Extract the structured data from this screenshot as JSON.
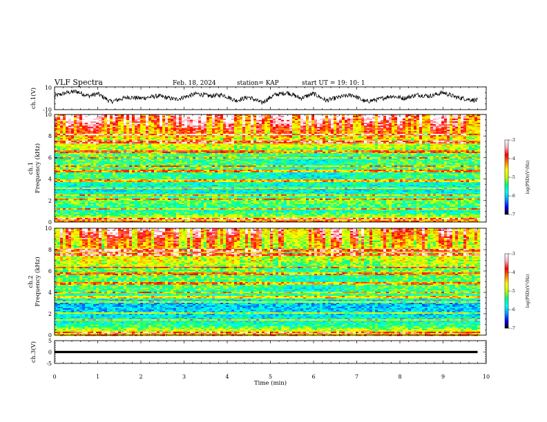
{
  "header": {
    "title": "VLF Spectra",
    "date": "Feb. 18, 2024",
    "station": "station= KAP",
    "start": "start  UT =   19: 10: 1"
  },
  "colorbar": {
    "label": "log(PSD)(V²/Hz)",
    "ticks": [
      "-3",
      "-4",
      "-5",
      "-6",
      "-7"
    ],
    "stops": [
      "#000000",
      "#0000ff",
      "#00a0ff",
      "#00ffff",
      "#00ff80",
      "#c8ff00",
      "#ffff00",
      "#ff8000",
      "#ff0000",
      "#ffb0c0",
      "#ffffff"
    ]
  },
  "chart_data": [
    {
      "type": "line",
      "name": "ch1-waveform",
      "ylabel": "ch.1(V)",
      "ylim": [
        -10,
        10
      ],
      "yticks": [
        "10",
        "-10"
      ],
      "xlim": [
        0,
        10
      ],
      "x_end": 9.8,
      "envelope": {
        "x": [
          0,
          0.3,
          0.5,
          0.8,
          1.0,
          1.3,
          1.7,
          2.0,
          2.4,
          2.8,
          3.0,
          3.3,
          3.6,
          3.9,
          4.2,
          4.5,
          4.8,
          5.1,
          5.4,
          5.7,
          6.0,
          6.3,
          6.6,
          6.9,
          7.2,
          7.5,
          7.8,
          8.1,
          8.4,
          8.7,
          9.0,
          9.3,
          9.6,
          9.8
        ],
        "y": [
          2,
          5,
          6,
          2,
          4,
          -3,
          1,
          0,
          2,
          -1,
          1,
          4,
          2,
          3,
          -2,
          1,
          -4,
          3,
          5,
          0,
          4,
          -2,
          1,
          3,
          -3,
          -1,
          2,
          0,
          3,
          2,
          5,
          1,
          -1,
          -2
        ]
      }
    },
    {
      "type": "heatmap",
      "name": "ch1-spectrogram",
      "ylabel_channel": "ch.1",
      "ylabel": "Frequency (kHz)",
      "ylim": [
        0,
        10
      ],
      "yticks": [
        "0",
        "2",
        "4",
        "6",
        "8",
        "10"
      ],
      "xlim": [
        0,
        10
      ],
      "x_end": 9.8,
      "zlim": [
        -7,
        -3
      ],
      "profile_freq_khz": [
        0,
        0.3,
        1.0,
        2.0,
        3.0,
        4.0,
        5.0,
        6.0,
        7.0,
        8.0,
        9.0,
        10.0
      ],
      "profile_log_psd": [
        -4.0,
        -4.5,
        -5.6,
        -5.2,
        -5.8,
        -5.5,
        -5.3,
        -5.4,
        -5.1,
        -4.9,
        -4.5,
        -4.1
      ],
      "lines_khz": [
        0.4,
        1.3,
        2.2,
        2.6,
        3.2,
        3.9,
        4.8,
        5.3,
        6.0,
        6.6,
        7.5,
        8.2
      ]
    },
    {
      "type": "heatmap",
      "name": "ch2-spectrogram",
      "ylabel_channel": "ch.2",
      "ylabel": "Frequency (kHz)",
      "ylim": [
        0,
        10
      ],
      "yticks": [
        "0",
        "2",
        "4",
        "6",
        "8",
        "10"
      ],
      "xlim": [
        0,
        10
      ],
      "x_end": 9.8,
      "zlim": [
        -7,
        -3
      ],
      "profile_freq_khz": [
        0,
        0.3,
        1.0,
        2.0,
        3.0,
        4.0,
        5.0,
        6.0,
        7.0,
        8.0,
        9.0,
        10.0
      ],
      "profile_log_psd": [
        -4.2,
        -4.6,
        -5.5,
        -5.9,
        -6.0,
        -5.4,
        -5.3,
        -5.2,
        -5.0,
        -5.1,
        -4.9,
        -4.6
      ],
      "lines_khz": [
        0.3,
        1.5,
        2.1,
        3.2,
        3.6,
        4.1,
        4.9,
        5.8,
        6.4,
        7.6,
        8.0
      ]
    },
    {
      "type": "line",
      "name": "ch3-waveform",
      "ylabel": "ch.3(V)",
      "ylim": [
        -5,
        5
      ],
      "yticks": [
        "5",
        "0",
        "-5"
      ],
      "xlim": [
        0,
        10
      ],
      "x_end": 9.8,
      "band": [
        -0.5,
        0.5
      ]
    }
  ],
  "xaxis": {
    "label": "Time (min)",
    "ticks": [
      "0",
      "1",
      "2",
      "3",
      "4",
      "5",
      "6",
      "7",
      "8",
      "9",
      "10"
    ]
  }
}
